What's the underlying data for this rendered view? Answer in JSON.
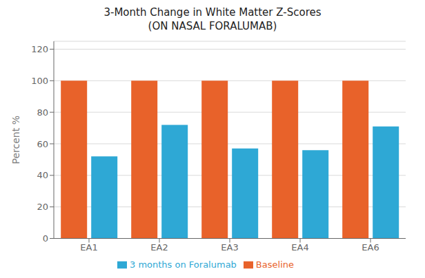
{
  "chart_data": {
    "type": "bar",
    "title": "3-Month Change in White Matter Z-Scores",
    "subtitle": "(ON NASAL FORALUMAB)",
    "categories": [
      "EA1",
      "EA2",
      "EA3",
      "EA4",
      "EA6"
    ],
    "series": [
      {
        "name": "Baseline",
        "color": "#E8622A",
        "values": [
          100,
          100,
          100,
          100,
          100
        ]
      },
      {
        "name": "3 months on Foralumab",
        "color": "#2EA8D5",
        "values": [
          52,
          72,
          57,
          56,
          71
        ]
      }
    ],
    "ylabel": "Percent %",
    "ylim": [
      0,
      125
    ],
    "yticks": [
      0,
      20,
      40,
      60,
      80,
      100,
      120
    ],
    "grid": true,
    "legend": "bottom"
  }
}
